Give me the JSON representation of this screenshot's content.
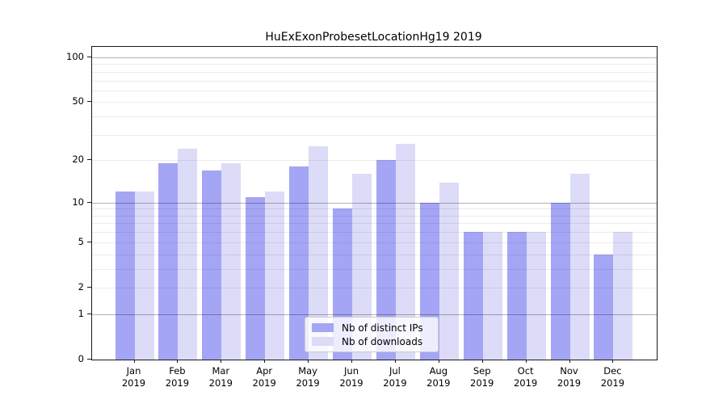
{
  "chart_data": {
    "type": "bar",
    "title": "HuExExonProbesetLocationHg19 2019",
    "categories": [
      "Jan",
      "Feb",
      "Mar",
      "Apr",
      "May",
      "Jun",
      "Jul",
      "Aug",
      "Sep",
      "Oct",
      "Nov",
      "Dec"
    ],
    "year": "2019",
    "series": [
      {
        "name": "Nb of distinct IPs",
        "color": "#a5a5f5",
        "values": [
          12,
          19,
          17,
          11,
          18,
          9,
          20,
          10,
          6,
          6,
          10,
          4
        ]
      },
      {
        "name": "Nb of downloads",
        "color": "#dcdcf8",
        "values": [
          12,
          24,
          19,
          12,
          25,
          16,
          26,
          14,
          6,
          6,
          16,
          6
        ]
      }
    ],
    "xlabel": "",
    "ylabel": "",
    "yscale": "log1p",
    "ylim": [
      0,
      120
    ],
    "yticks": [
      100,
      50,
      20,
      10,
      5,
      2,
      1,
      0
    ],
    "grid_major": [
      1,
      10,
      100
    ],
    "grid_minor": [
      2,
      3,
      4,
      5,
      6,
      7,
      8,
      9,
      20,
      30,
      40,
      50,
      60,
      70,
      80,
      90
    ],
    "grid": "horizontal",
    "legend_position": "inside-bottom-center",
    "spine_color": "#1a1a1a"
  }
}
